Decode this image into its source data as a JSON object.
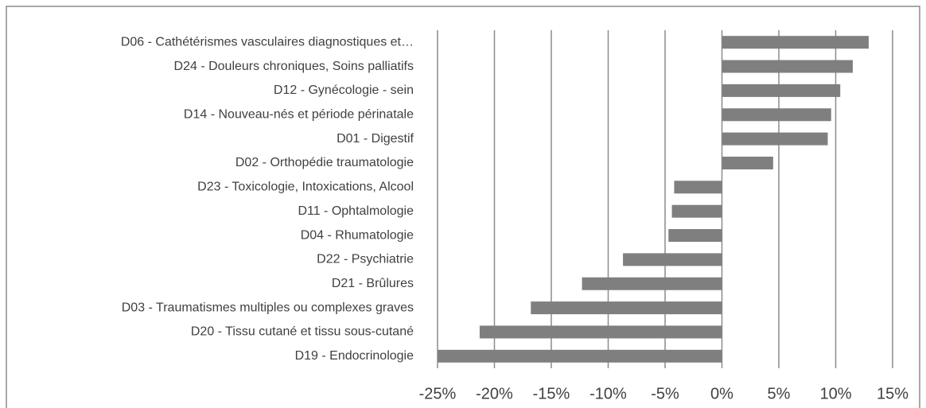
{
  "chart_data": {
    "type": "barh",
    "categories": [
      "D06 - Cathétérismes vasculaires diagnostiques et…",
      "D24 - Douleurs chroniques, Soins palliatifs",
      "D12 - Gynécologie - sein",
      "D14 - Nouveau-nés et période périnatale",
      "D01 - Digestif",
      "D02 - Orthopédie traumatologie",
      "D23 - Toxicologie, Intoxications, Alcool",
      "D11 - Ophtalmologie",
      "D04 - Rhumatologie",
      "D22 - Psychiatrie",
      "D21 - Brûlures",
      "D03 - Traumatismes multiples ou complexes graves",
      "D20 - Tissu cutané et tissu sous-cutané",
      "D19 - Endocrinologie"
    ],
    "values": [
      12.9,
      11.5,
      10.4,
      9.6,
      9.3,
      4.5,
      -4.2,
      -4.4,
      -4.7,
      -8.7,
      -12.3,
      -16.8,
      -21.3,
      -25
    ],
    "color": "#7f7f7f",
    "xlim": [
      -25,
      15
    ],
    "xticks": [
      {
        "value": -25,
        "label": "-25%"
      },
      {
        "value": -20,
        "label": "-20%"
      },
      {
        "value": -15,
        "label": "-15%"
      },
      {
        "value": -10,
        "label": "-10%"
      },
      {
        "value": -5,
        "label": "-5%"
      },
      {
        "value": 0,
        "label": "0%"
      },
      {
        "value": 5,
        "label": "5%"
      },
      {
        "value": 10,
        "label": "10%"
      },
      {
        "value": 15,
        "label": "15%"
      }
    ],
    "grid": true
  }
}
